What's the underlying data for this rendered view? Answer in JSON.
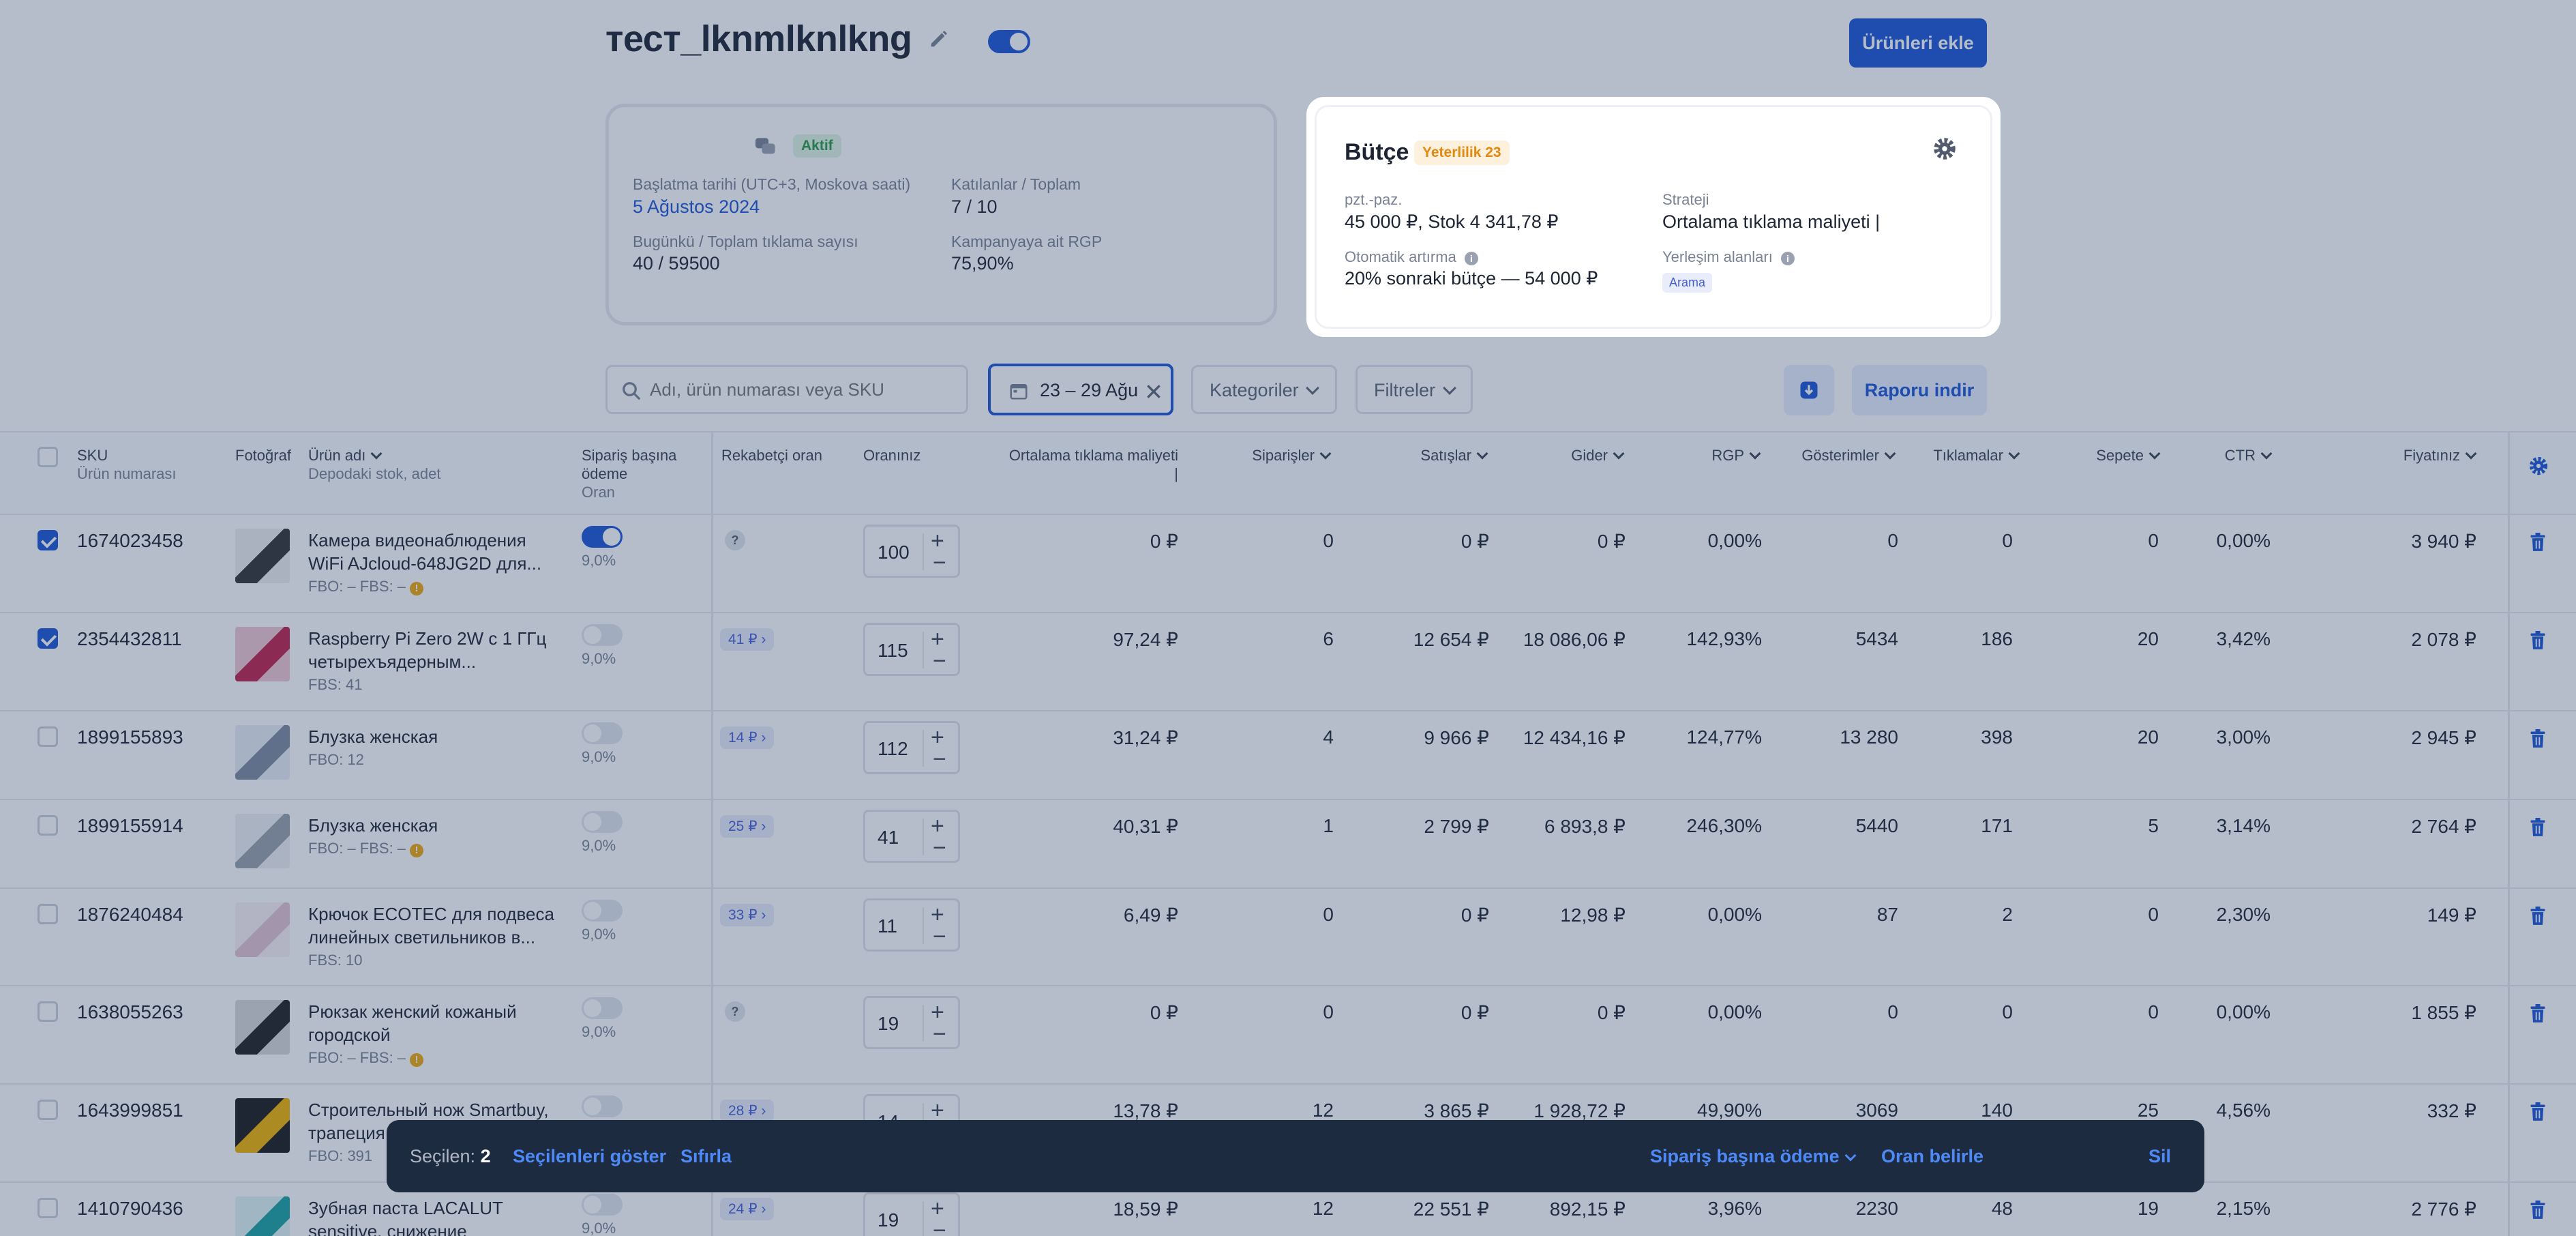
{
  "header": {
    "title": "тест_lknmlknlkng",
    "add_button": "Ürünleri ekle"
  },
  "info_card": {
    "status": "Aktif",
    "start_label": "Başlatma tarihi (UTC+3, Moskova saati)",
    "start_value": "5 Ağustos 2024",
    "participants_label": "Katılanlar / Toplam",
    "participants_value": "7 / 10",
    "clicks_label": "Bugünkü / Toplam tıklama sayısı",
    "clicks_value": "40 / 59500",
    "rgp_label": "Kampanyaya ait RGP",
    "rgp_value": "75,90%"
  },
  "budget": {
    "title": "Bütçe",
    "badge": "Yeterlilik 23",
    "period_label": "pzt.-paz.",
    "period_value": "45 000 ₽, Stok 4 341,78 ₽",
    "strategy_label": "Strateji",
    "strategy_value": "Ortalama tıklama maliyeti |",
    "auto_label": "Otomatik artırma",
    "auto_value": "20% sonraki bütçe — 54 000 ₽",
    "placement_label": "Yerleşim alanları",
    "placement_value": "Arama"
  },
  "toolbar": {
    "search_placeholder": "Adı, ürün numarası veya SKU",
    "date_range": "23 – 29 Ağu",
    "categories": "Kategoriler",
    "filters": "Filtreler",
    "report": "Raporu indir"
  },
  "columns": {
    "sku": "SKU",
    "sku_sub": "Ürün numarası",
    "photo": "Fotoğraf",
    "name": "Ürün adı",
    "name_sub": "Depodaki stok, adet",
    "pay": "Sipariş başına ödeme",
    "pay_sub": "Oran",
    "competitor": "Rekabetçi oran",
    "your_rate": "Oranınız",
    "avg_cpc": "Ortalama tıklama maliyeti |",
    "orders": "Siparişler",
    "sales": "Satışlar",
    "expenses": "Gider",
    "rgp": "RGP",
    "impressions": "Gösterimler",
    "clicks": "Tıklamalar",
    "cart": "Sepete",
    "ctr": "CTR",
    "price": "Fiyatınız"
  },
  "rows": [
    {
      "checked": true,
      "sku": "1674023458",
      "name1": "Камера видеонаблюдения",
      "name2": "WiFi AJcloud-648JG2D для...",
      "stock": "FBO: –   FBS: –",
      "stock_warn": true,
      "toggle_on": true,
      "pay_rate": "9,0%",
      "competitor": "",
      "rate": "100",
      "avg_cpc": "0 ₽",
      "orders": "0",
      "sales": "0 ₽",
      "expenses": "0 ₽",
      "rgp": "0,00%",
      "impressions": "0",
      "clicks": "0",
      "cart": "0",
      "ctr": "0,00%",
      "price": "3 940 ₽"
    },
    {
      "checked": true,
      "sku": "2354432811",
      "name1": "Raspberry Pi Zero 2W с 1 ГГц",
      "name2": "четырехъядерным...",
      "stock": "FBS: 41",
      "stock_warn": false,
      "toggle_on": false,
      "pay_rate": "9,0%",
      "competitor": "41 ₽",
      "rate": "115",
      "avg_cpc": "97,24 ₽",
      "orders": "6",
      "sales": "12 654 ₽",
      "expenses": "18 086,06 ₽",
      "rgp": "142,93%",
      "impressions": "5434",
      "clicks": "186",
      "cart": "20",
      "ctr": "3,42%",
      "price": "2 078 ₽"
    },
    {
      "checked": false,
      "sku": "1899155893",
      "name1": "Блузка женская",
      "name2": "",
      "stock": "FBO: 12",
      "stock_warn": false,
      "toggle_on": false,
      "pay_rate": "9,0%",
      "competitor": "14 ₽",
      "rate": "112",
      "avg_cpc": "31,24 ₽",
      "orders": "4",
      "sales": "9 966 ₽",
      "expenses": "12 434,16 ₽",
      "rgp": "124,77%",
      "impressions": "13 280",
      "clicks": "398",
      "cart": "20",
      "ctr": "3,00%",
      "price": "2 945 ₽"
    },
    {
      "checked": false,
      "sku": "1899155914",
      "name1": "Блузка женская",
      "name2": "",
      "stock": "FBO: –   FBS: –",
      "stock_warn": true,
      "toggle_on": false,
      "pay_rate": "9,0%",
      "competitor": "25 ₽",
      "rate": "41",
      "avg_cpc": "40,31 ₽",
      "orders": "1",
      "sales": "2 799 ₽",
      "expenses": "6 893,8 ₽",
      "rgp": "246,30%",
      "impressions": "5440",
      "clicks": "171",
      "cart": "5",
      "ctr": "3,14%",
      "price": "2 764 ₽"
    },
    {
      "checked": false,
      "sku": "1876240484",
      "name1": "Крючок ECOTEC для подвеса",
      "name2": "линейных светильников в...",
      "stock": "FBS: 10",
      "stock_warn": false,
      "toggle_on": false,
      "pay_rate": "9,0%",
      "competitor": "33 ₽",
      "rate": "11",
      "avg_cpc": "6,49 ₽",
      "orders": "0",
      "sales": "0 ₽",
      "expenses": "12,98 ₽",
      "rgp": "0,00%",
      "impressions": "87",
      "clicks": "2",
      "cart": "0",
      "ctr": "2,30%",
      "price": "149 ₽"
    },
    {
      "checked": false,
      "sku": "1638055263",
      "name1": "Рюкзак женский кожаный",
      "name2": "городской",
      "stock": "FBO: –   FBS: –",
      "stock_warn": true,
      "toggle_on": false,
      "pay_rate": "9,0%",
      "competitor": "",
      "rate": "19",
      "avg_cpc": "0 ₽",
      "orders": "0",
      "sales": "0 ₽",
      "expenses": "0 ₽",
      "rgp": "0,00%",
      "impressions": "0",
      "clicks": "0",
      "cart": "0",
      "ctr": "0,00%",
      "price": "1 855 ₽"
    },
    {
      "checked": false,
      "sku": "1643999851",
      "name1": "Строительный нож Smartbuy,",
      "name2": "трапеция",
      "stock": "FBO: 391",
      "stock_warn": false,
      "toggle_on": false,
      "pay_rate": "9,0%",
      "competitor": "28 ₽",
      "rate": "14",
      "avg_cpc": "13,78 ₽",
      "orders": "12",
      "sales": "3 865 ₽",
      "expenses": "1 928,72 ₽",
      "rgp": "49,90%",
      "impressions": "3069",
      "clicks": "140",
      "cart": "25",
      "ctr": "4,56%",
      "price": "332 ₽"
    },
    {
      "checked": false,
      "sku": "1410790436",
      "name1": "Зубная паста LACALUT",
      "name2": "sensitive, снижение",
      "stock": "",
      "stock_warn": false,
      "toggle_on": false,
      "pay_rate": "9,0%",
      "competitor": "24 ₽",
      "rate": "19",
      "avg_cpc": "18,59 ₽",
      "orders": "12",
      "sales": "22 551 ₽",
      "expenses": "892,15 ₽",
      "rgp": "3,96%",
      "impressions": "2230",
      "clicks": "48",
      "cart": "19",
      "ctr": "2,15%",
      "price": "2 776 ₽"
    }
  ],
  "bottom_bar": {
    "selected_label": "Seçilen:",
    "selected_count": "2",
    "show_selected": "Seçilenleri göster",
    "reset": "Sıfırla",
    "pay_per_order": "Sipariş başına ödeme",
    "set_rate": "Oran belirle",
    "delete": "Sil"
  },
  "colors": {
    "accent": "#1a55d6",
    "overlay": "#273e63",
    "bar": "#1d2b40"
  }
}
